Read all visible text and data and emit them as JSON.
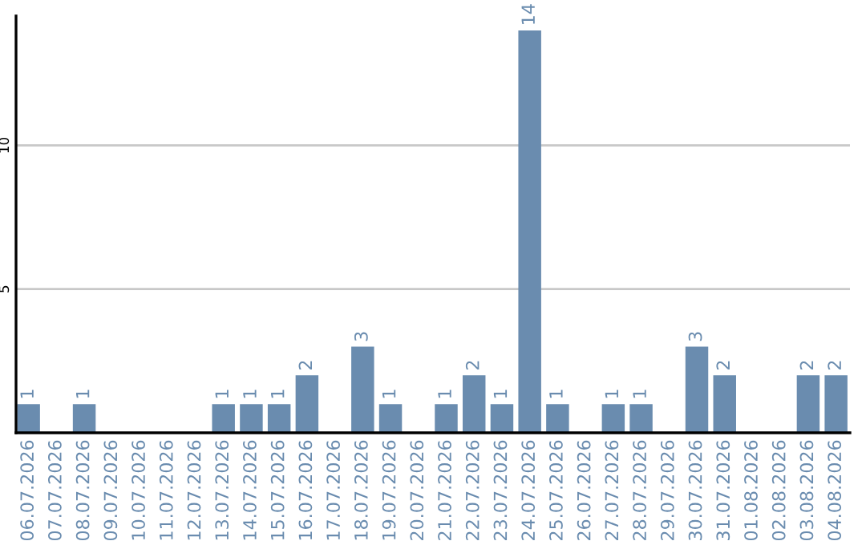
{
  "chart_data": {
    "type": "bar",
    "categories": [
      "06.07.2026",
      "07.07.2026",
      "08.07.2026",
      "09.07.2026",
      "10.07.2026",
      "11.07.2026",
      "12.07.2026",
      "13.07.2026",
      "14.07.2026",
      "15.07.2026",
      "16.07.2026",
      "17.07.2026",
      "18.07.2026",
      "19.07.2026",
      "20.07.2026",
      "21.07.2026",
      "22.07.2026",
      "23.07.2026",
      "24.07.2026",
      "25.07.2026",
      "26.07.2026",
      "27.07.2026",
      "28.07.2026",
      "29.07.2026",
      "30.07.2026",
      "31.07.2026",
      "01.08.2026",
      "02.08.2026",
      "03.08.2026",
      "04.08.2026"
    ],
    "values": [
      1,
      0,
      1,
      0,
      0,
      0,
      0,
      1,
      1,
      1,
      2,
      0,
      3,
      1,
      0,
      1,
      2,
      1,
      14,
      1,
      0,
      1,
      1,
      0,
      3,
      2,
      0,
      0,
      2,
      2
    ],
    "value_labels": [
      "1",
      null,
      "1",
      null,
      null,
      null,
      null,
      "1",
      "1",
      "1",
      "2",
      null,
      "3",
      "1",
      null,
      "1",
      "2",
      "1",
      "14",
      "1",
      null,
      "1",
      "1",
      null,
      "3",
      "2",
      null,
      null,
      "2",
      "2"
    ],
    "color": "#6a8caf",
    "ylim": [
      0,
      14.5
    ],
    "yticks": [
      5,
      10
    ],
    "grid": "y"
  }
}
